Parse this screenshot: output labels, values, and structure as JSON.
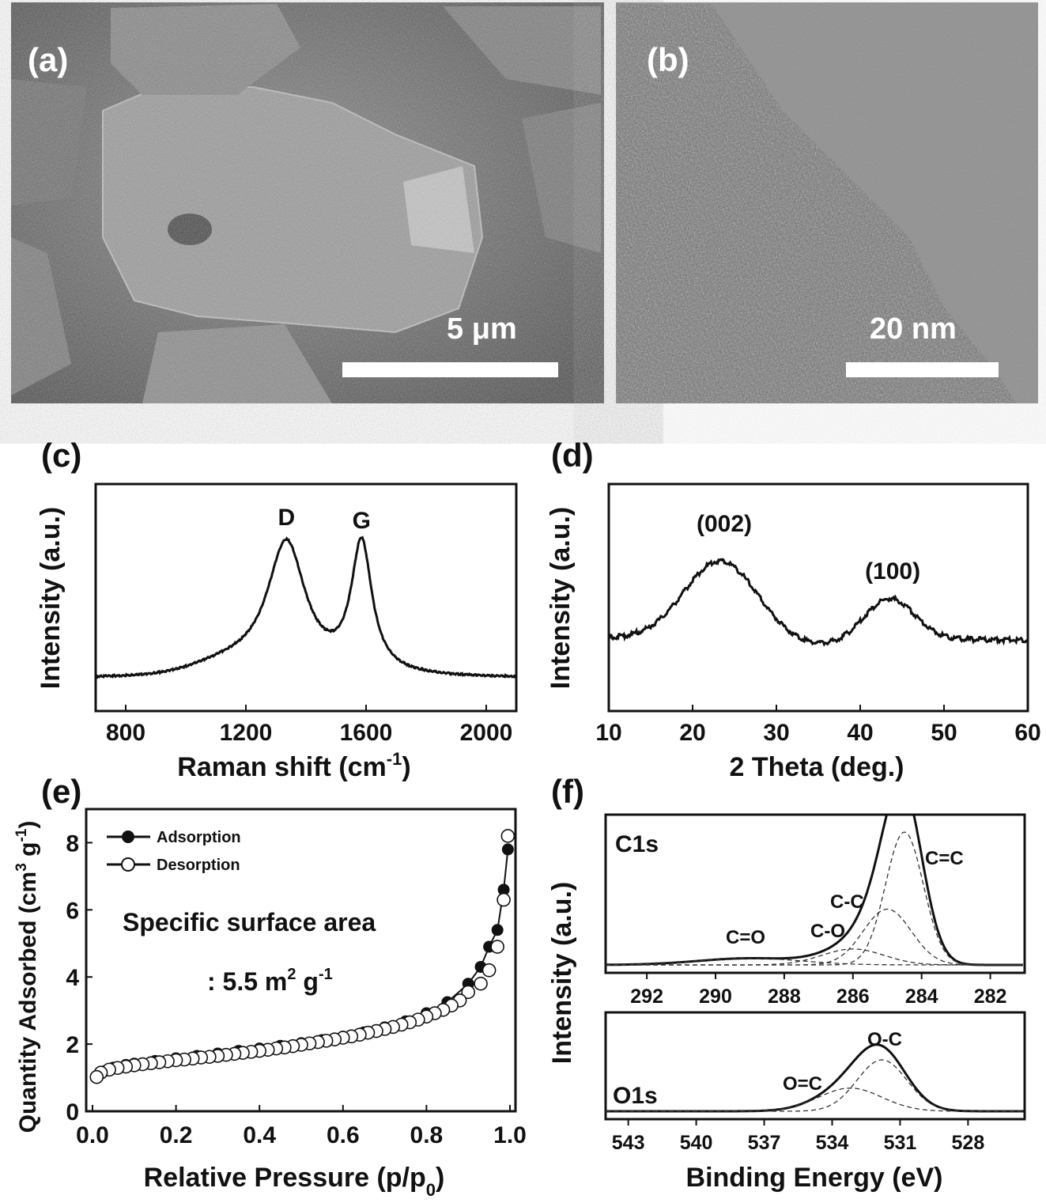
{
  "panels": {
    "a": {
      "label": "(a)",
      "scale_text": "5 μm"
    },
    "b": {
      "label": "(b)",
      "scale_text": "20 nm"
    }
  },
  "chart_data": [
    {
      "id": "c",
      "label": "(c)",
      "type": "line",
      "xlabel": "Raman shift (cm",
      "xlabel_sup": "-1",
      "xlabel_end": ")",
      "ylabel": "Intensity (a.u.)",
      "xlim": [
        700,
        2100
      ],
      "xticks": [
        800,
        1200,
        1600,
        2000
      ],
      "peaks": [
        {
          "label": "D",
          "x": 1335,
          "rel_height": 0.95
        },
        {
          "label": "G",
          "x": 1585,
          "rel_height": 0.93
        }
      ]
    },
    {
      "id": "d",
      "label": "(d)",
      "type": "line",
      "xlabel": "2 Theta (deg.)",
      "ylabel": "Intensity (a.u.)",
      "xlim": [
        10,
        60
      ],
      "xticks": [
        10,
        20,
        30,
        40,
        50,
        60
      ],
      "peaks": [
        {
          "label": "(002)",
          "x": 23.3
        },
        {
          "label": "(100)",
          "x": 43.5
        }
      ]
    },
    {
      "id": "e",
      "label": "(e)",
      "type": "scatter",
      "xlabel": "Relative Pressure (p/p",
      "xlabel_sub": "0",
      "xlabel_end": ")",
      "ylabel": "Quantity Adsorbed (cm",
      "ylabel_sup": "3",
      "ylabel_mid": " g",
      "ylabel_sup2": "-1",
      "ylabel_end": ")",
      "xlim": [
        0,
        1.0
      ],
      "ylim": [
        0,
        9
      ],
      "xticks": [
        "0.0",
        "0.2",
        "0.4",
        "0.6",
        "0.8",
        "1.0"
      ],
      "yticks": [
        0,
        2,
        4,
        6,
        8
      ],
      "annotation_line1": "Specific surface area",
      "annotation_line2": ": 5.5 m",
      "annotation_sup": "2",
      "annotation_mid": " g",
      "annotation_sup2": "-1",
      "series": [
        {
          "name": "Adsorption",
          "marker": "filled",
          "x": [
            0.01,
            0.03,
            0.05,
            0.08,
            0.1,
            0.15,
            0.2,
            0.25,
            0.3,
            0.35,
            0.4,
            0.45,
            0.5,
            0.55,
            0.6,
            0.65,
            0.7,
            0.75,
            0.8,
            0.85,
            0.9,
            0.93,
            0.95,
            0.97,
            0.985,
            0.995
          ],
          "y": [
            1.05,
            1.2,
            1.3,
            1.38,
            1.42,
            1.5,
            1.58,
            1.65,
            1.72,
            1.8,
            1.87,
            1.95,
            2.03,
            2.12,
            2.22,
            2.35,
            2.5,
            2.68,
            2.92,
            3.25,
            3.8,
            4.3,
            4.9,
            5.4,
            6.6,
            7.8
          ]
        },
        {
          "name": "Desorption",
          "marker": "open",
          "x": [
            0.995,
            0.985,
            0.97,
            0.95,
            0.93,
            0.9,
            0.88,
            0.86,
            0.84,
            0.82,
            0.8,
            0.78,
            0.76,
            0.74,
            0.72,
            0.7,
            0.68,
            0.66,
            0.64,
            0.62,
            0.6,
            0.58,
            0.56,
            0.54,
            0.52,
            0.5,
            0.48,
            0.46,
            0.44,
            0.42,
            0.4,
            0.38,
            0.36,
            0.34,
            0.32,
            0.3,
            0.28,
            0.26,
            0.24,
            0.22,
            0.2,
            0.18,
            0.16,
            0.14,
            0.12,
            0.1,
            0.08,
            0.06,
            0.04,
            0.02,
            0.01
          ],
          "y": [
            8.2,
            6.3,
            4.9,
            4.2,
            3.8,
            3.55,
            3.3,
            3.15,
            3.02,
            2.92,
            2.82,
            2.73,
            2.65,
            2.58,
            2.51,
            2.45,
            2.39,
            2.34,
            2.28,
            2.23,
            2.19,
            2.14,
            2.1,
            2.06,
            2.02,
            1.98,
            1.94,
            1.9,
            1.87,
            1.83,
            1.8,
            1.77,
            1.74,
            1.71,
            1.68,
            1.65,
            1.62,
            1.6,
            1.57,
            1.54,
            1.52,
            1.49,
            1.46,
            1.43,
            1.4,
            1.37,
            1.33,
            1.29,
            1.24,
            1.15,
            1.02
          ]
        }
      ]
    },
    {
      "id": "f",
      "label": "(f)",
      "type": "line",
      "xlabel": "Binding Energy (eV)",
      "ylabel": "Intensity (a.u.)",
      "subplots": [
        {
          "name": "C1s",
          "xlim": [
            293.2,
            281.0
          ],
          "xticks": [
            292,
            290,
            288,
            286,
            284,
            282
          ],
          "components": [
            {
              "label": "C=C",
              "center": 284.5,
              "height": 1.0
            },
            {
              "label": "C-C",
              "center": 285.0,
              "height": 0.42
            },
            {
              "label": "C-O",
              "center": 286.0,
              "height": 0.12
            },
            {
              "label": "C=O",
              "center": 289.0,
              "height": 0.05
            }
          ]
        },
        {
          "name": "O1s",
          "xlim": [
            544.0,
            525.5
          ],
          "xticks": [
            543,
            540,
            537,
            534,
            531,
            528
          ],
          "components": [
            {
              "label": "O-C",
              "center": 531.8,
              "height": 1.0
            },
            {
              "label": "O=C",
              "center": 533.2,
              "height": 0.45
            }
          ]
        }
      ]
    }
  ]
}
